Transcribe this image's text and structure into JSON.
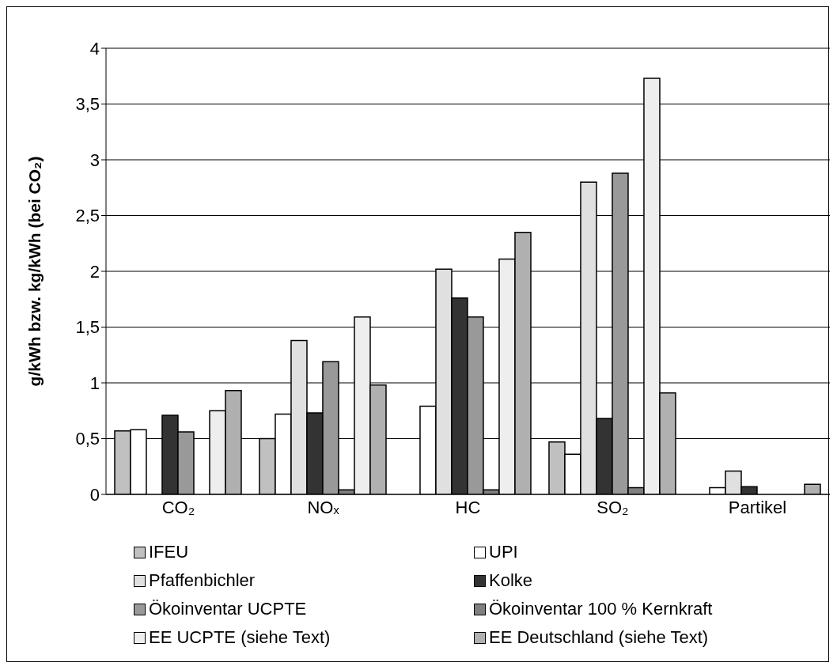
{
  "chart_data": {
    "type": "bar",
    "ylabel": "g/kWh bzw. kg/kWh (bei CO₂)",
    "categories": [
      "CO₂",
      "NOₓ",
      "HC",
      "SO₂",
      "Partikel"
    ],
    "series": [
      {
        "name": "IFEU",
        "color": "#c0c0c0",
        "values": [
          0.57,
          0.5,
          null,
          0.47,
          null
        ]
      },
      {
        "name": "UPI",
        "color": "#ffffff",
        "values": [
          0.58,
          0.72,
          0.79,
          0.36,
          0.06
        ]
      },
      {
        "name": "Pfaffenbichler",
        "color": "#e0e0e0",
        "values": [
          null,
          1.38,
          2.02,
          2.8,
          0.21
        ]
      },
      {
        "name": "Kolke",
        "color": "#333333",
        "values": [
          0.71,
          0.73,
          1.76,
          0.68,
          0.07
        ]
      },
      {
        "name": "Ökoinventar UCPTE",
        "color": "#999999",
        "values": [
          0.56,
          1.19,
          1.59,
          2.88,
          null
        ]
      },
      {
        "name": "Ökoinventar 100 % Kernkraft",
        "color": "#808080",
        "values": [
          null,
          0.04,
          0.04,
          0.06,
          null
        ]
      },
      {
        "name": "EE UCPTE (siehe Text)",
        "color": "#eeeeee",
        "values": [
          0.75,
          1.59,
          2.11,
          3.73,
          null
        ]
      },
      {
        "name": "EE Deutschland (siehe Text)",
        "color": "#b0b0b0",
        "values": [
          0.93,
          0.98,
          2.35,
          0.91,
          0.09
        ]
      }
    ],
    "ylim": [
      0,
      4
    ],
    "yticks": [
      0,
      {
        "value": 0.5,
        "label": "0,5"
      },
      1,
      {
        "value": 1.5,
        "label": "1,5"
      },
      2,
      {
        "value": 2.5,
        "label": "2,5"
      },
      3,
      {
        "value": 3.5,
        "label": "3,5"
      },
      4
    ],
    "grid": "y",
    "legend": "bottom"
  }
}
